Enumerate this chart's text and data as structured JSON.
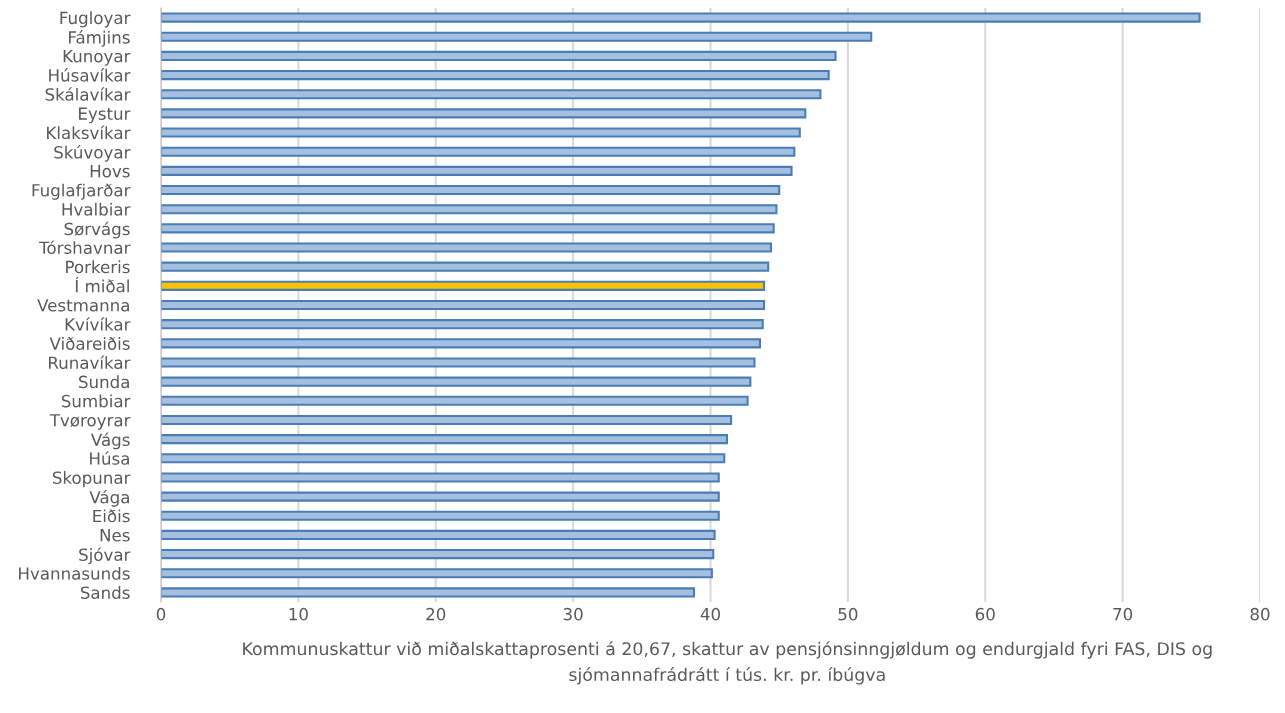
{
  "chart_data": {
    "type": "bar",
    "orientation": "horizontal",
    "xlabel": "Kommunuskattur við miðalskattaprosenti á 20,67, skattur av pensjónsinngjøldum og endurgjald fyri FAS, DIS og sjómannafrádrátt í tús. kr. pr. íbúgva",
    "categories": [
      "Fugloyar",
      "Fámjins",
      "Kunoyar",
      "Húsavíkar",
      "Skálavíkar",
      "Eystur",
      "Klaksvíkar",
      "Skúvoyar",
      "Hovs",
      "Fuglafjarðar",
      "Hvalbiar",
      "Sørvágs",
      "Tórshavnar",
      "Porkeris",
      "Í miðal",
      "Vestmanna",
      "Kvívíkar",
      "Viðareiðis",
      "Runavíkar",
      "Sunda",
      "Sumbiar",
      "Tvøroyrar",
      "Vágs",
      "Húsa",
      "Skopunar",
      "Vága",
      "Eiðis",
      "Nes",
      "Sjóvar",
      "Hvannasunds",
      "Sands"
    ],
    "values": [
      75.6,
      51.7,
      49.1,
      48.6,
      48.0,
      46.9,
      46.5,
      46.1,
      45.9,
      45.0,
      44.8,
      44.6,
      44.4,
      44.2,
      43.9,
      43.9,
      43.8,
      43.6,
      43.2,
      42.9,
      42.7,
      41.5,
      41.2,
      41.0,
      40.6,
      40.6,
      40.6,
      40.3,
      40.2,
      40.1,
      38.8
    ],
    "colors": [
      "#a5bfe0",
      "#a5bfe0",
      "#a5bfe0",
      "#a5bfe0",
      "#a5bfe0",
      "#a5bfe0",
      "#a5bfe0",
      "#a5bfe0",
      "#a5bfe0",
      "#a5bfe0",
      "#a5bfe0",
      "#a5bfe0",
      "#a5bfe0",
      "#a5bfe0",
      "#ffc000",
      "#a5bfe0",
      "#a5bfe0",
      "#a5bfe0",
      "#a5bfe0",
      "#a5bfe0",
      "#a5bfe0",
      "#a5bfe0",
      "#a5bfe0",
      "#a5bfe0",
      "#a5bfe0",
      "#a5bfe0",
      "#a5bfe0",
      "#a5bfe0",
      "#a5bfe0",
      "#a5bfe0",
      "#a5bfe0"
    ],
    "xlim": [
      0,
      80
    ],
    "xticks": [
      0,
      10,
      20,
      30,
      40,
      50,
      60,
      70,
      80
    ],
    "grid": "x",
    "legend": false
  }
}
